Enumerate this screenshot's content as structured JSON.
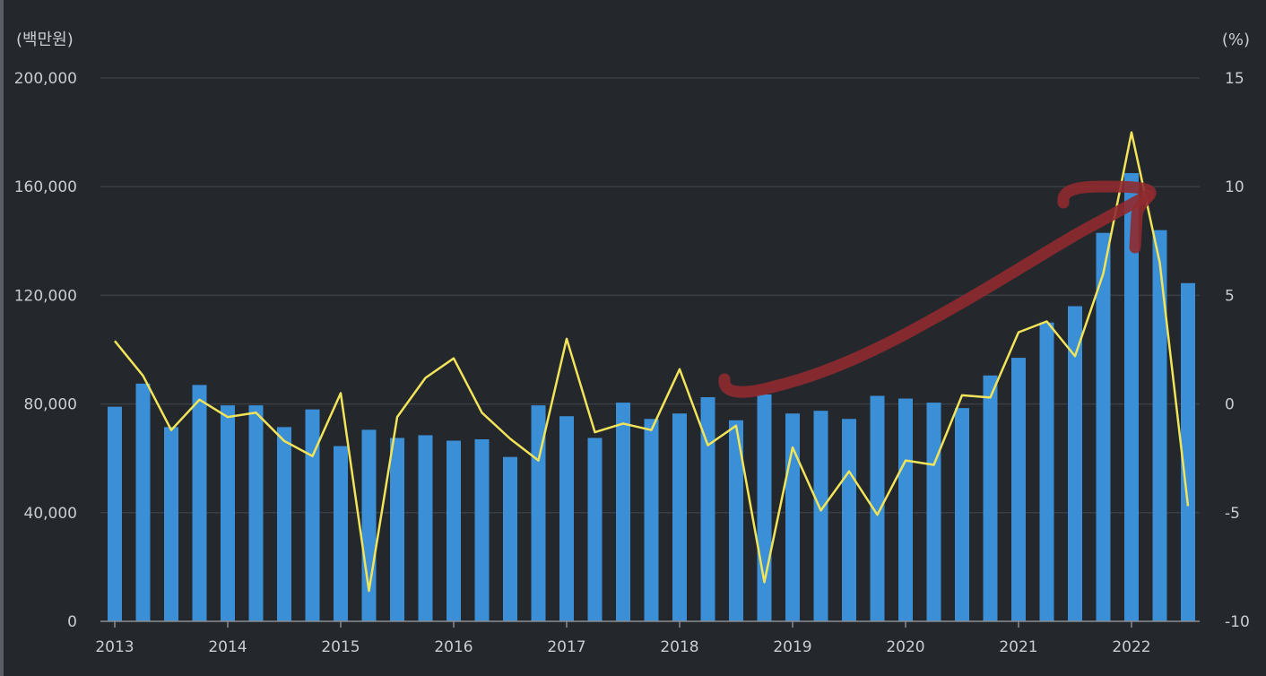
{
  "chart_data": {
    "type": "bar+line",
    "y_left_unit": "(백만원)",
    "y_right_unit": "(%)",
    "y_left_ticks": [
      "0",
      "40,000",
      "80,000",
      "120,000",
      "160,000",
      "200,000"
    ],
    "y_right_ticks": [
      "-10",
      "-5",
      "0",
      "5",
      "10",
      "15"
    ],
    "ylim_left": [
      0,
      200000
    ],
    "ylim_right": [
      -10,
      15
    ],
    "x_tick_labels": [
      "2013",
      "2014",
      "2015",
      "2016",
      "2017",
      "2018",
      "2019",
      "2020",
      "2021",
      "2022"
    ],
    "grid": true,
    "series": [
      {
        "axis": "left",
        "kind": "bar",
        "color": "#3a8fd6",
        "values": [
          79000,
          87500,
          71500,
          87000,
          79500,
          79500,
          71500,
          78000,
          64500,
          70500,
          67500,
          68500,
          66500,
          67000,
          60500,
          79500,
          75500,
          67500,
          80500,
          74500,
          76500,
          82500,
          74000,
          83500,
          76500,
          77500,
          74500,
          83000,
          82000,
          80500,
          78500,
          90500,
          97000,
          110000,
          116000,
          143000,
          165000,
          144000,
          124500
        ]
      },
      {
        "axis": "right",
        "kind": "line",
        "color": "#f1e35a",
        "values": [
          2.9,
          1.3,
          -1.2,
          0.2,
          -0.6,
          -0.4,
          -1.7,
          -2.4,
          0.5,
          -8.6,
          -0.6,
          1.2,
          2.1,
          -0.4,
          -1.6,
          -2.6,
          3.0,
          -1.3,
          -0.9,
          -1.2,
          1.6,
          -1.9,
          -1.0,
          -8.2,
          -2.0,
          -4.9,
          -3.1,
          -5.1,
          -2.6,
          -2.8,
          0.4,
          0.3,
          3.3,
          3.8,
          2.2,
          6.0,
          12.5,
          6.5,
          -4.7
        ]
      }
    ]
  },
  "annotation": {
    "color": "#8f2b30"
  }
}
